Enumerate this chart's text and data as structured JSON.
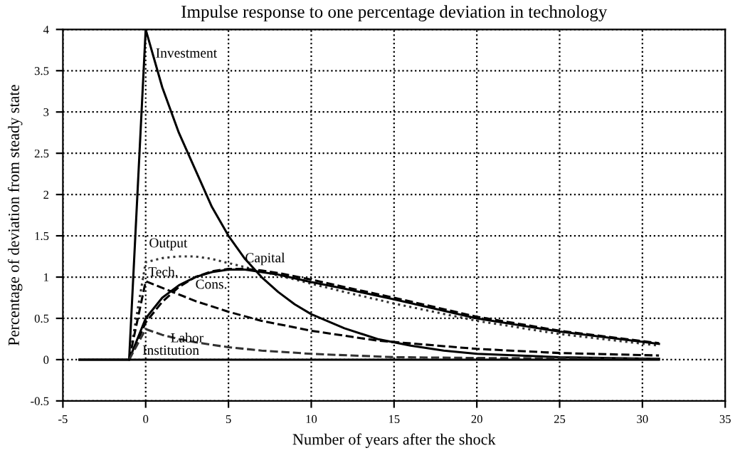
{
  "chart_data": {
    "type": "line",
    "title": "Impulse response to one percentage deviation in technology",
    "xlabel": "Number of years after the shock",
    "ylabel": "Percentage of deviation from steady state",
    "xlim": [
      -5,
      35
    ],
    "xticks": [
      -5,
      0,
      5,
      10,
      15,
      20,
      25,
      30,
      35
    ],
    "ylim": [
      -0.5,
      4
    ],
    "yticks": [
      -0.5,
      0,
      0.5,
      1,
      1.5,
      2,
      2.5,
      3,
      3.5,
      4
    ],
    "grid": true,
    "legend": false,
    "marker": "none",
    "series": [
      {
        "name": "Investment",
        "color": "#000000",
        "line_style": "solid",
        "x": [
          -4,
          -1,
          0,
          1,
          2,
          3,
          4,
          5,
          6,
          7,
          8,
          9,
          10,
          12,
          14,
          16,
          18,
          20,
          25,
          31
        ],
        "values": [
          0,
          0,
          4.0,
          3.3,
          2.75,
          2.3,
          1.85,
          1.5,
          1.22,
          1.0,
          0.82,
          0.67,
          0.55,
          0.38,
          0.25,
          0.17,
          0.11,
          0.07,
          0.03,
          0.01
        ]
      },
      {
        "name": "Output",
        "color": "#333333",
        "line_style": "dotted",
        "x": [
          -1,
          0,
          1,
          2,
          3,
          4,
          5,
          6,
          8,
          10,
          12,
          15,
          20,
          25,
          31
        ],
        "values": [
          0,
          1.18,
          1.23,
          1.25,
          1.25,
          1.22,
          1.17,
          1.12,
          1.02,
          0.92,
          0.82,
          0.68,
          0.47,
          0.31,
          0.17
        ]
      },
      {
        "name": "Capital",
        "color": "#000000",
        "line_style": "dashed",
        "x": [
          -1,
          0,
          1,
          2,
          3,
          4,
          5,
          6,
          7,
          8,
          10,
          12,
          15,
          20,
          25,
          31
        ],
        "values": [
          0,
          0.45,
          0.7,
          0.88,
          1.0,
          1.07,
          1.1,
          1.1,
          1.08,
          1.05,
          0.97,
          0.88,
          0.75,
          0.52,
          0.35,
          0.2
        ]
      },
      {
        "name": "Cons.",
        "color": "#000000",
        "line_style": "solid",
        "x": [
          -1,
          0,
          1,
          2,
          3,
          4,
          5,
          6,
          8,
          10,
          12,
          15,
          20,
          25,
          31
        ],
        "values": [
          0,
          0.5,
          0.75,
          0.9,
          1.0,
          1.06,
          1.09,
          1.09,
          1.03,
          0.94,
          0.86,
          0.73,
          0.5,
          0.34,
          0.19
        ]
      },
      {
        "name": "Tech.",
        "color": "#000000",
        "line_style": "dashed",
        "x": [
          -1,
          0,
          1,
          2,
          3,
          5,
          7,
          10,
          14,
          20,
          25,
          31
        ],
        "values": [
          0,
          0.95,
          0.87,
          0.79,
          0.71,
          0.58,
          0.47,
          0.35,
          0.23,
          0.13,
          0.08,
          0.05
        ]
      },
      {
        "name": "Labor",
        "color": "#333333",
        "line_style": "dashed",
        "x": [
          -1,
          0,
          1,
          2,
          3,
          5,
          7,
          10,
          15,
          20,
          31
        ],
        "values": [
          0,
          0.37,
          0.3,
          0.25,
          0.21,
          0.15,
          0.11,
          0.07,
          0.03,
          0.02,
          0.01
        ]
      },
      {
        "name": "Institution",
        "color": "#000000",
        "line_style": "solid",
        "x": [
          -4,
          -1,
          0,
          10,
          20,
          31
        ],
        "values": [
          0,
          0,
          0,
          0,
          0,
          0
        ]
      }
    ]
  }
}
